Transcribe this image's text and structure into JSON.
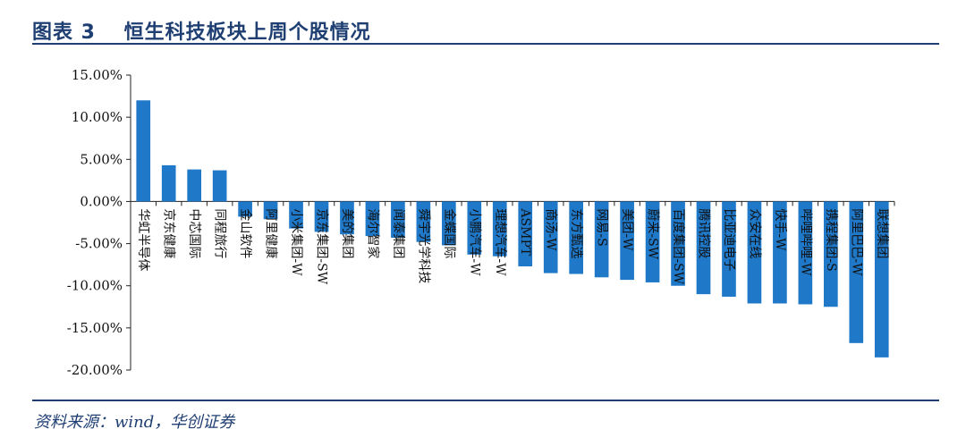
{
  "figure": {
    "title": "图表 3　 恒生科技板块上周个股情况",
    "source": "资料来源：wind，华创证券"
  },
  "colors": {
    "bar": "#1f78c8",
    "rule": "#1f3f73",
    "axis": "#222222"
  },
  "chart_data": {
    "type": "bar",
    "title": "",
    "xlabel": "",
    "ylabel": "",
    "ylim": [
      -20,
      15
    ],
    "yticks": [
      15,
      10,
      5,
      0,
      -5,
      -10,
      -15,
      -20
    ],
    "tick_suffix": "%",
    "grid": false,
    "legend": "none",
    "categories": [
      "华虹半导体",
      "京东健康",
      "中芯国际",
      "同程旅行",
      "金山软件",
      "阿里健康",
      "小米集团-W",
      "京东集团-SW",
      "美的集团",
      "海尔智家",
      "闻泰集团",
      "舜宇光学科技",
      "金蝶国际",
      "小鹏汽车-W",
      "理想汽车-W",
      "ASMPT",
      "商汤-W",
      "东方甄选",
      "网易-S",
      "美团-W",
      "蔚来-SW",
      "百度集团-SW",
      "腾讯控股",
      "比亚迪电子",
      "众安在线",
      "快手-W",
      "哔哩哔哩-W",
      "携程集团-S",
      "阿里巴巴-W",
      "联想集团"
    ],
    "values": [
      12.0,
      4.3,
      3.8,
      3.7,
      -1.8,
      -2.1,
      -3.2,
      -3.6,
      -3.9,
      -4.1,
      -4.3,
      -4.8,
      -5.2,
      -6.3,
      -6.5,
      -7.7,
      -8.5,
      -8.6,
      -9.0,
      -9.3,
      -9.6,
      -10.0,
      -11.0,
      -11.3,
      -12.1,
      -12.1,
      -12.2,
      -12.5,
      -16.8,
      -18.5
    ]
  }
}
